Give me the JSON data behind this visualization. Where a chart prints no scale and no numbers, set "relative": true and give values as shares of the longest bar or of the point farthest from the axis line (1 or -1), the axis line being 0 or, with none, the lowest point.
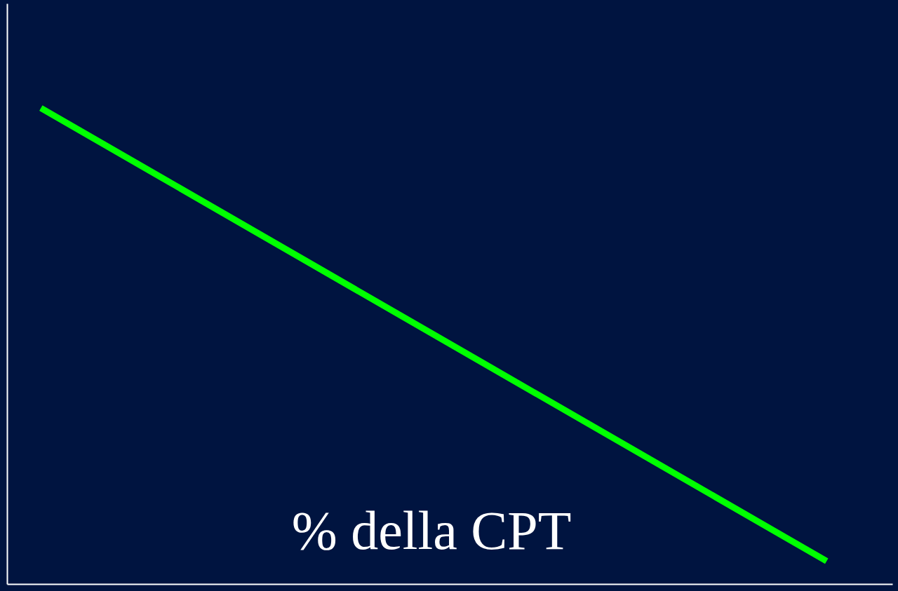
{
  "chart_data": {
    "type": "line",
    "xlabel": "% della CPT",
    "categories": [
      null,
      null
    ],
    "relative": true,
    "series": [
      {
        "color": "#00ff00",
        "values": [
          1,
          0.048
        ]
      }
    ],
    "grid": false,
    "tick_labels": false,
    "marker": "none",
    "line_style": "solid"
  }
}
